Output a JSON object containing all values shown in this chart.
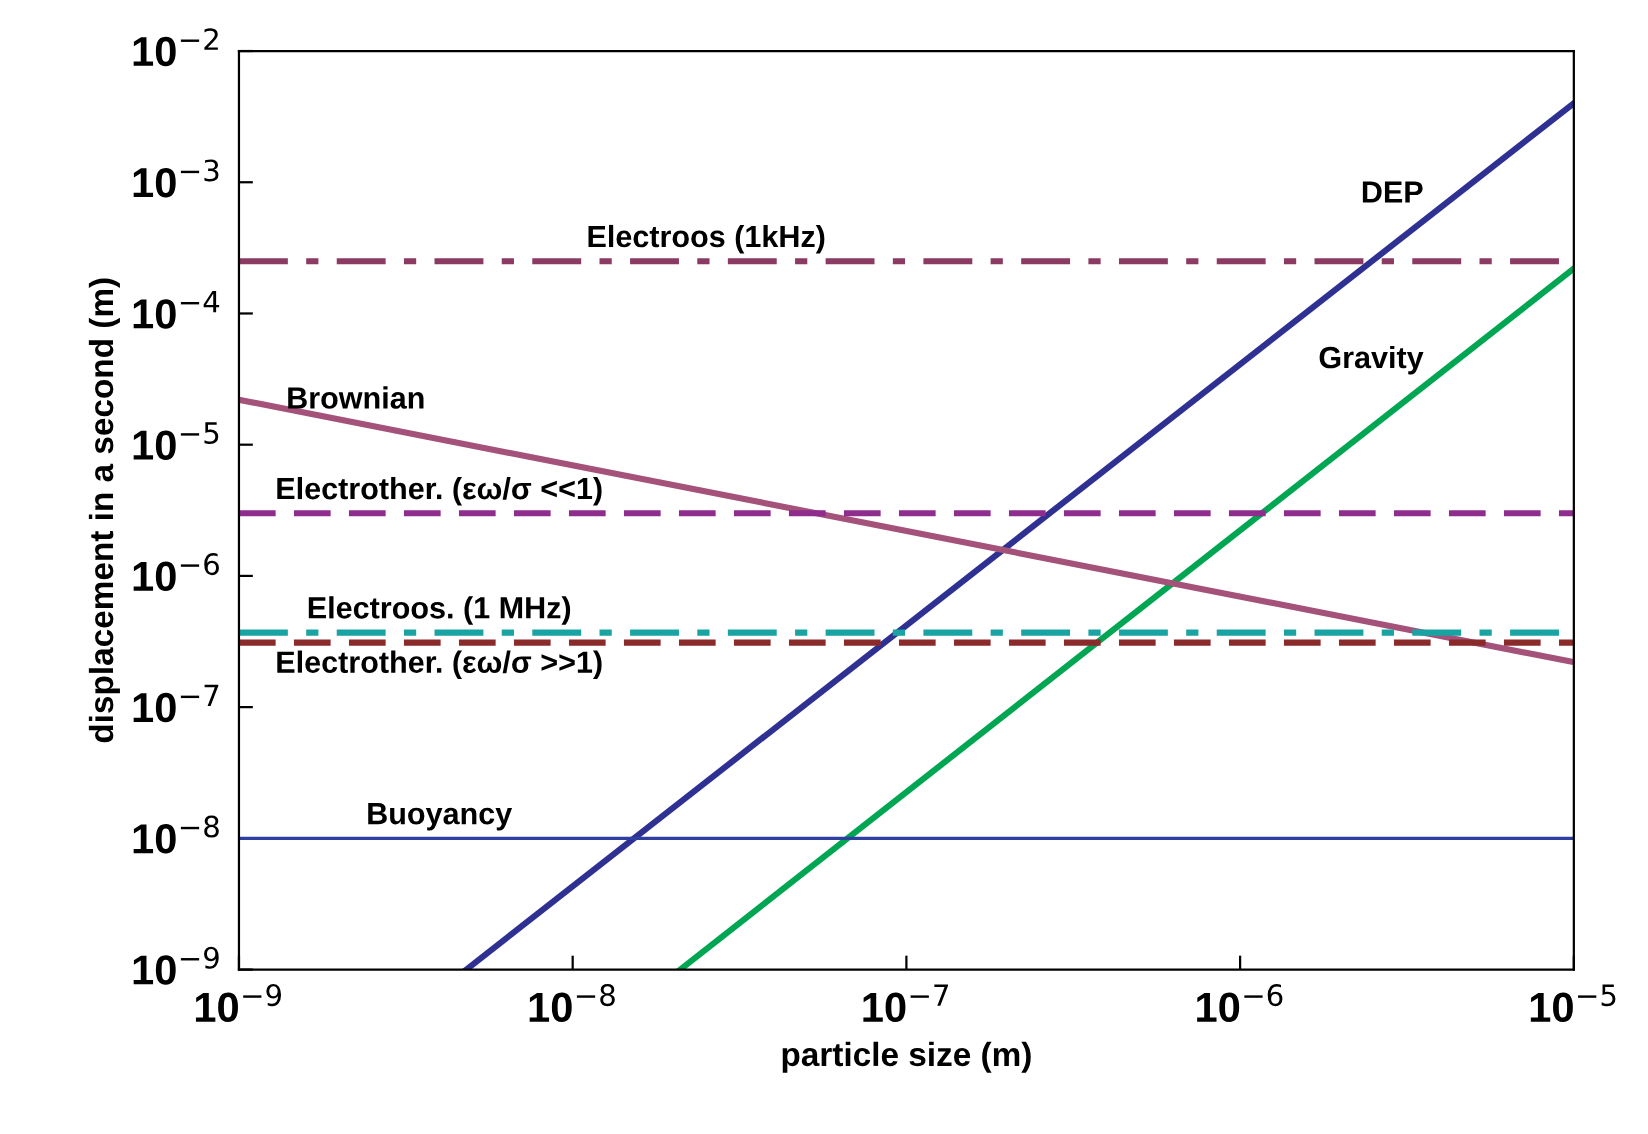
{
  "chart_data": {
    "type": "line",
    "xlabel": "particle size (m)",
    "ylabel": "displacement in a second (m)",
    "log": "xy",
    "legend": false,
    "grid": false,
    "xlim": [
      1e-09,
      1e-05
    ],
    "ylim": [
      1e-09,
      0.01
    ],
    "xticks": [
      {
        "value": 1e-09,
        "label": "10$^{−9}$"
      },
      {
        "value": 1e-08,
        "label": "10$^{−8}$"
      },
      {
        "value": 1e-07,
        "label": "10$^{−7}$"
      },
      {
        "value": 1e-06,
        "label": "10$^{−6}$"
      },
      {
        "value": 1e-05,
        "label": "10$^{−5}$"
      }
    ],
    "yticks": [
      {
        "value": 1e-09,
        "label": "10$^{−9}$"
      },
      {
        "value": 1e-08,
        "label": "10$^{−8}$"
      },
      {
        "value": 1e-07,
        "label": "10$^{−7}$"
      },
      {
        "value": 1e-06,
        "label": "10$^{−6}$"
      },
      {
        "value": 1e-05,
        "label": "10$^{−5}$"
      },
      {
        "value": 0.0001,
        "label": "10$^{−4}$"
      },
      {
        "value": 0.001,
        "label": "10$^{−3}$"
      },
      {
        "value": 0.01,
        "label": "10$^{−2}$"
      }
    ],
    "series": [
      {
        "name": "DEP",
        "color": "#2e3192",
        "line_style": "solid",
        "x": [
          4.8e-09,
          1e-05
        ],
        "values": [
          1e-09,
          0.004
        ]
      },
      {
        "name": "Gravity",
        "color": "#00a651",
        "line_style": "solid",
        "x": [
          2.1e-08,
          1e-05
        ],
        "values": [
          1e-09,
          0.00022
        ]
      },
      {
        "name": "Electroos (1kHz)",
        "color": "#8b3a62",
        "line_style": "dashdot",
        "x": [
          1e-09,
          1e-05
        ],
        "values": [
          0.00025,
          0.00025
        ]
      },
      {
        "name": "Brownian",
        "color": "#a5527a",
        "line_style": "solid",
        "x": [
          1e-09,
          1e-05
        ],
        "values": [
          2.2e-05,
          2.2e-07
        ]
      },
      {
        "name": "Electrother. (εω/σ <<1)",
        "color": "#8e2d8e",
        "line_style": "dashed",
        "x": [
          1e-09,
          1e-05
        ],
        "values": [
          3e-06,
          3e-06
        ]
      },
      {
        "name": "Electroos. (1 MHz)",
        "color": "#1aa3a3",
        "line_style": "dashdot",
        "x": [
          1e-09,
          1e-05
        ],
        "values": [
          3.7e-07,
          3.7e-07
        ]
      },
      {
        "name": "Electrother. (εω/σ >>1)",
        "color": "#8b2a2a",
        "line_style": "dashed",
        "x": [
          1e-09,
          1e-05
        ],
        "values": [
          3.1e-07,
          3.1e-07
        ]
      },
      {
        "name": "Buoyancy",
        "color": "#2e3fa0",
        "line_style": "solid",
        "x": [
          1e-09,
          1e-05
        ],
        "values": [
          1e-08,
          1e-08
        ]
      }
    ]
  }
}
